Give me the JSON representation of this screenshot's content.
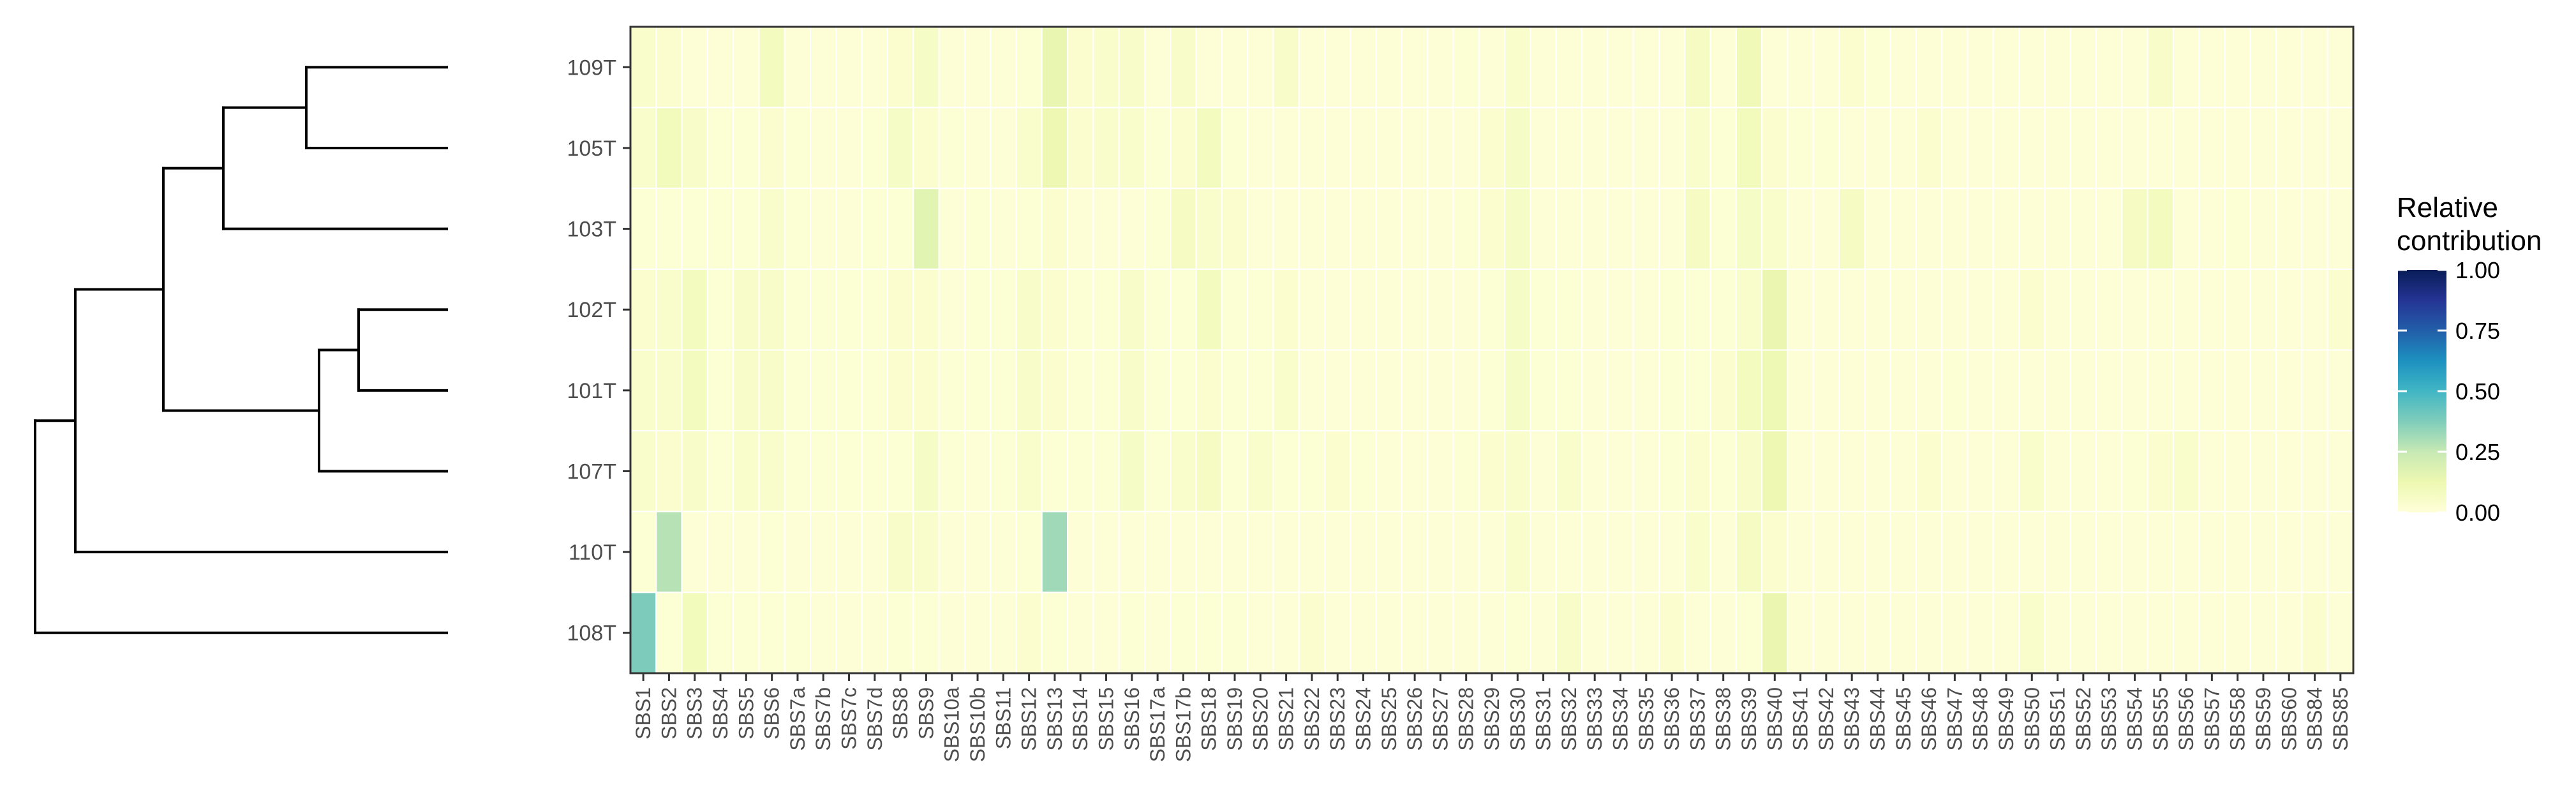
{
  "chart_data": {
    "type": "heatmap",
    "rows": [
      "109T",
      "105T",
      "103T",
      "102T",
      "101T",
      "107T",
      "110T",
      "108T"
    ],
    "columns": [
      "SBS1",
      "SBS2",
      "SBS3",
      "SBS4",
      "SBS5",
      "SBS6",
      "SBS7a",
      "SBS7b",
      "SBS7c",
      "SBS7d",
      "SBS8",
      "SBS9",
      "SBS10a",
      "SBS10b",
      "SBS11",
      "SBS12",
      "SBS13",
      "SBS14",
      "SBS15",
      "SBS16",
      "SBS17a",
      "SBS17b",
      "SBS18",
      "SBS19",
      "SBS20",
      "SBS21",
      "SBS22",
      "SBS23",
      "SBS24",
      "SBS25",
      "SBS26",
      "SBS27",
      "SBS28",
      "SBS29",
      "SBS30",
      "SBS31",
      "SBS32",
      "SBS33",
      "SBS34",
      "SBS35",
      "SBS36",
      "SBS37",
      "SBS38",
      "SBS39",
      "SBS40",
      "SBS41",
      "SBS42",
      "SBS43",
      "SBS44",
      "SBS45",
      "SBS46",
      "SBS47",
      "SBS48",
      "SBS49",
      "SBS50",
      "SBS51",
      "SBS52",
      "SBS53",
      "SBS54",
      "SBS55",
      "SBS56",
      "SBS57",
      "SBS58",
      "SBS59",
      "SBS60",
      "SBS84",
      "SBS85"
    ],
    "values": [
      [
        0.04,
        0.03,
        0.01,
        0.01,
        0.01,
        0.08,
        0.01,
        0.01,
        0.01,
        0.01,
        0.03,
        0.06,
        0.01,
        0.01,
        0.01,
        0.02,
        0.14,
        0.03,
        0.04,
        0.05,
        0.01,
        0.05,
        0.01,
        0.01,
        0.01,
        0.05,
        0.01,
        0.01,
        0.01,
        0.01,
        0.01,
        0.01,
        0.02,
        0.01,
        0.04,
        0.01,
        0.01,
        0.01,
        0.01,
        0.01,
        0.01,
        0.07,
        0.01,
        0.1,
        0.01,
        0.01,
        0.01,
        0.03,
        0.02,
        0.01,
        0.01,
        0.01,
        0.01,
        0.01,
        0.01,
        0.01,
        0.01,
        0.01,
        0.01,
        0.05,
        0.01,
        0.01,
        0.01,
        0.01,
        0.01,
        0.01,
        0.01
      ],
      [
        0.04,
        0.09,
        0.05,
        0.02,
        0.02,
        0.03,
        0.02,
        0.01,
        0.01,
        0.02,
        0.06,
        0.03,
        0.02,
        0.01,
        0.01,
        0.04,
        0.12,
        0.03,
        0.04,
        0.04,
        0.02,
        0.03,
        0.08,
        0.02,
        0.01,
        0.01,
        0.01,
        0.01,
        0.01,
        0.01,
        0.01,
        0.01,
        0.01,
        0.03,
        0.06,
        0.01,
        0.01,
        0.01,
        0.01,
        0.01,
        0.01,
        0.04,
        0.02,
        0.09,
        0.03,
        0.02,
        0.02,
        0.01,
        0.01,
        0.01,
        0.03,
        0.01,
        0.01,
        0.01,
        0.01,
        0.01,
        0.01,
        0.01,
        0.01,
        0.01,
        0.01,
        0.01,
        0.01,
        0.01,
        0.01,
        0.01,
        0.01
      ],
      [
        0.02,
        0.02,
        0.02,
        0.02,
        0.02,
        0.04,
        0.02,
        0.01,
        0.01,
        0.02,
        0.02,
        0.16,
        0.01,
        0.02,
        0.01,
        0.02,
        0.03,
        0.01,
        0.01,
        0.01,
        0.02,
        0.07,
        0.04,
        0.03,
        0.01,
        0.01,
        0.01,
        0.01,
        0.01,
        0.01,
        0.01,
        0.01,
        0.02,
        0.03,
        0.06,
        0.01,
        0.01,
        0.01,
        0.01,
        0.01,
        0.01,
        0.07,
        0.02,
        0.06,
        0.04,
        0.01,
        0.01,
        0.07,
        0.01,
        0.01,
        0.01,
        0.01,
        0.01,
        0.01,
        0.01,
        0.01,
        0.01,
        0.01,
        0.07,
        0.08,
        0.01,
        0.01,
        0.02,
        0.01,
        0.01,
        0.01,
        0.01
      ],
      [
        0.03,
        0.04,
        0.08,
        0.02,
        0.05,
        0.05,
        0.02,
        0.02,
        0.02,
        0.02,
        0.03,
        0.03,
        0.01,
        0.02,
        0.02,
        0.05,
        0.03,
        0.02,
        0.02,
        0.05,
        0.02,
        0.02,
        0.08,
        0.02,
        0.02,
        0.03,
        0.01,
        0.01,
        0.01,
        0.01,
        0.01,
        0.01,
        0.01,
        0.02,
        0.06,
        0.02,
        0.02,
        0.01,
        0.01,
        0.01,
        0.02,
        0.02,
        0.02,
        0.04,
        0.13,
        0.01,
        0.01,
        0.01,
        0.01,
        0.01,
        0.01,
        0.01,
        0.01,
        0.01,
        0.03,
        0.01,
        0.01,
        0.01,
        0.01,
        0.01,
        0.01,
        0.01,
        0.01,
        0.01,
        0.01,
        0.01,
        0.03
      ],
      [
        0.04,
        0.04,
        0.08,
        0.02,
        0.05,
        0.05,
        0.02,
        0.02,
        0.02,
        0.02,
        0.03,
        0.03,
        0.02,
        0.02,
        0.02,
        0.05,
        0.03,
        0.02,
        0.02,
        0.05,
        0.02,
        0.02,
        0.03,
        0.02,
        0.02,
        0.04,
        0.01,
        0.01,
        0.01,
        0.01,
        0.01,
        0.01,
        0.01,
        0.02,
        0.06,
        0.02,
        0.02,
        0.01,
        0.01,
        0.01,
        0.02,
        0.02,
        0.03,
        0.08,
        0.11,
        0.01,
        0.01,
        0.01,
        0.01,
        0.01,
        0.01,
        0.02,
        0.01,
        0.01,
        0.01,
        0.01,
        0.01,
        0.01,
        0.01,
        0.01,
        0.01,
        0.01,
        0.01,
        0.01,
        0.01,
        0.01,
        0.01
      ],
      [
        0.04,
        0.03,
        0.05,
        0.02,
        0.04,
        0.04,
        0.02,
        0.02,
        0.02,
        0.02,
        0.02,
        0.06,
        0.02,
        0.01,
        0.02,
        0.04,
        0.02,
        0.02,
        0.02,
        0.06,
        0.02,
        0.04,
        0.07,
        0.02,
        0.04,
        0.02,
        0.02,
        0.03,
        0.02,
        0.01,
        0.01,
        0.01,
        0.02,
        0.03,
        0.04,
        0.01,
        0.04,
        0.01,
        0.01,
        0.01,
        0.02,
        0.03,
        0.02,
        0.05,
        0.12,
        0.01,
        0.01,
        0.01,
        0.01,
        0.01,
        0.03,
        0.01,
        0.01,
        0.01,
        0.04,
        0.01,
        0.01,
        0.01,
        0.02,
        0.03,
        0.04,
        0.01,
        0.01,
        0.01,
        0.01,
        0.01,
        0.01
      ],
      [
        0.02,
        0.28,
        0.01,
        0.01,
        0.01,
        0.02,
        0.01,
        0.01,
        0.01,
        0.01,
        0.05,
        0.04,
        0.01,
        0.01,
        0.01,
        0.02,
        0.32,
        0.01,
        0.01,
        0.01,
        0.01,
        0.01,
        0.01,
        0.01,
        0.01,
        0.01,
        0.01,
        0.01,
        0.01,
        0.01,
        0.01,
        0.01,
        0.01,
        0.01,
        0.04,
        0.01,
        0.01,
        0.01,
        0.01,
        0.01,
        0.01,
        0.04,
        0.01,
        0.07,
        0.03,
        0.01,
        0.01,
        0.01,
        0.01,
        0.01,
        0.01,
        0.01,
        0.01,
        0.01,
        0.01,
        0.01,
        0.01,
        0.01,
        0.01,
        0.01,
        0.01,
        0.01,
        0.01,
        0.01,
        0.01,
        0.01,
        0.01
      ],
      [
        0.38,
        0.02,
        0.09,
        0.02,
        0.02,
        0.02,
        0.02,
        0.01,
        0.01,
        0.01,
        0.02,
        0.02,
        0.01,
        0.01,
        0.01,
        0.03,
        0.02,
        0.01,
        0.01,
        0.02,
        0.01,
        0.02,
        0.02,
        0.02,
        0.01,
        0.01,
        0.03,
        0.01,
        0.01,
        0.01,
        0.01,
        0.01,
        0.01,
        0.01,
        0.02,
        0.01,
        0.05,
        0.01,
        0.01,
        0.01,
        0.03,
        0.01,
        0.01,
        0.02,
        0.13,
        0.01,
        0.01,
        0.01,
        0.01,
        0.01,
        0.01,
        0.01,
        0.01,
        0.01,
        0.04,
        0.01,
        0.01,
        0.01,
        0.01,
        0.01,
        0.01,
        0.01,
        0.01,
        0.01,
        0.01,
        0.03,
        0.01
      ]
    ],
    "legend": {
      "title_line1": "Relative",
      "title_line2": "contribution",
      "ticks": [
        "1.00",
        "0.75",
        "0.50",
        "0.25",
        "0.00"
      ],
      "range": [
        0,
        1
      ],
      "placement": "right"
    },
    "color_scale": [
      "#ffffd9",
      "#edf8b1",
      "#c7e9b4",
      "#7fcdbb",
      "#41b6c4",
      "#1d91c0",
      "#225ea8",
      "#253494",
      "#081d58"
    ],
    "dendrogram": {
      "leaf_order": [
        "109T",
        "105T",
        "103T",
        "102T",
        "101T",
        "107T",
        "110T",
        "108T"
      ]
    }
  }
}
